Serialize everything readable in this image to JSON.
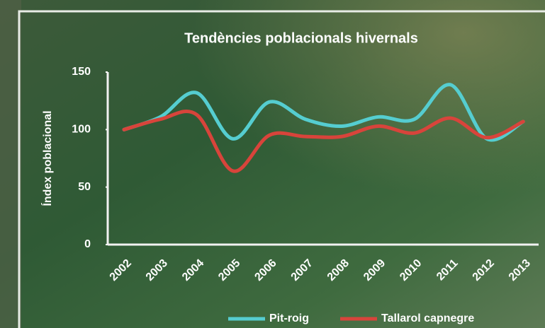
{
  "chart_data": {
    "type": "line",
    "title": "Tendències poblacionals hivernals",
    "y_label": "Índex poblacional",
    "categories": [
      "2002",
      "2003",
      "2004",
      "2005",
      "2006",
      "2007",
      "2008",
      "2009",
      "2010",
      "2011",
      "2012",
      "2013"
    ],
    "series": [
      {
        "name": "Pit-roig",
        "color": "#55cdd0",
        "values": [
          100,
          111,
          132,
          92,
          124,
          109,
          103,
          111,
          109,
          139,
          92,
          107
        ]
      },
      {
        "name": "Tallarol capnegre",
        "color": "#d8443b",
        "values": [
          100,
          109,
          113,
          64,
          95,
          94,
          94,
          103,
          97,
          110,
          93,
          107
        ]
      }
    ],
    "ylim": [
      0,
      150
    ],
    "yticks": [
      0,
      50,
      100,
      150
    ],
    "legend": "bottom"
  }
}
